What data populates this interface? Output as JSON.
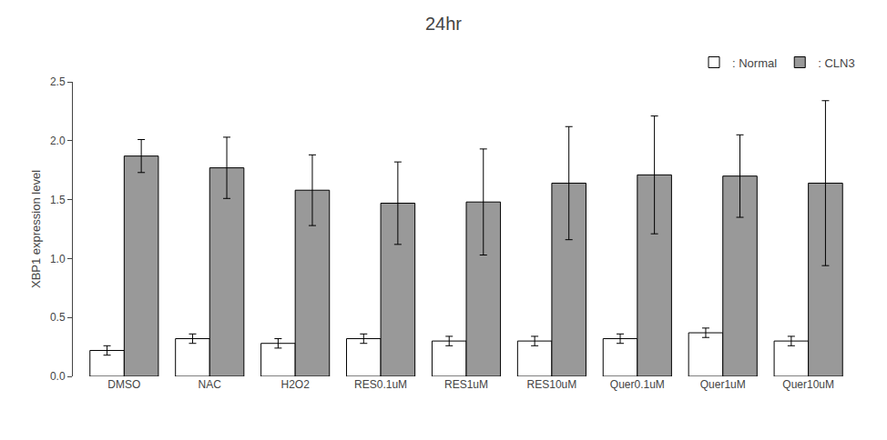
{
  "chart_data": {
    "type": "bar",
    "title": "24hr",
    "ylabel": "XBP1 expression level",
    "categories": [
      "DMSO",
      "NAC",
      "H2O2",
      "RES0.1uM",
      "RES1uM",
      "RES10uM",
      "Quer0.1uM",
      "Quer1uM",
      "Quer10uM"
    ],
    "series": [
      {
        "name": ": Normal",
        "color": "#ffffff",
        "values": [
          0.22,
          0.32,
          0.28,
          0.32,
          0.3,
          0.3,
          0.32,
          0.37,
          0.3
        ],
        "errors": [
          0.04,
          0.04,
          0.04,
          0.04,
          0.04,
          0.04,
          0.04,
          0.04,
          0.04
        ]
      },
      {
        "name": ": CLN3",
        "color": "#999999",
        "values": [
          1.87,
          1.77,
          1.58,
          1.47,
          1.48,
          1.64,
          1.71,
          1.7,
          1.64
        ],
        "errors": [
          0.14,
          0.26,
          0.3,
          0.35,
          0.45,
          0.48,
          0.5,
          0.35,
          0.7
        ]
      }
    ],
    "ylim": [
      0,
      2.5
    ],
    "yticks": [
      {
        "value": 0,
        "label": "0.0"
      },
      0.5,
      {
        "value": 1,
        "label": "1.0"
      },
      1.5,
      {
        "value": 2,
        "label": "2.0"
      },
      2.5
    ],
    "grid": false,
    "legend": "upper right"
  }
}
